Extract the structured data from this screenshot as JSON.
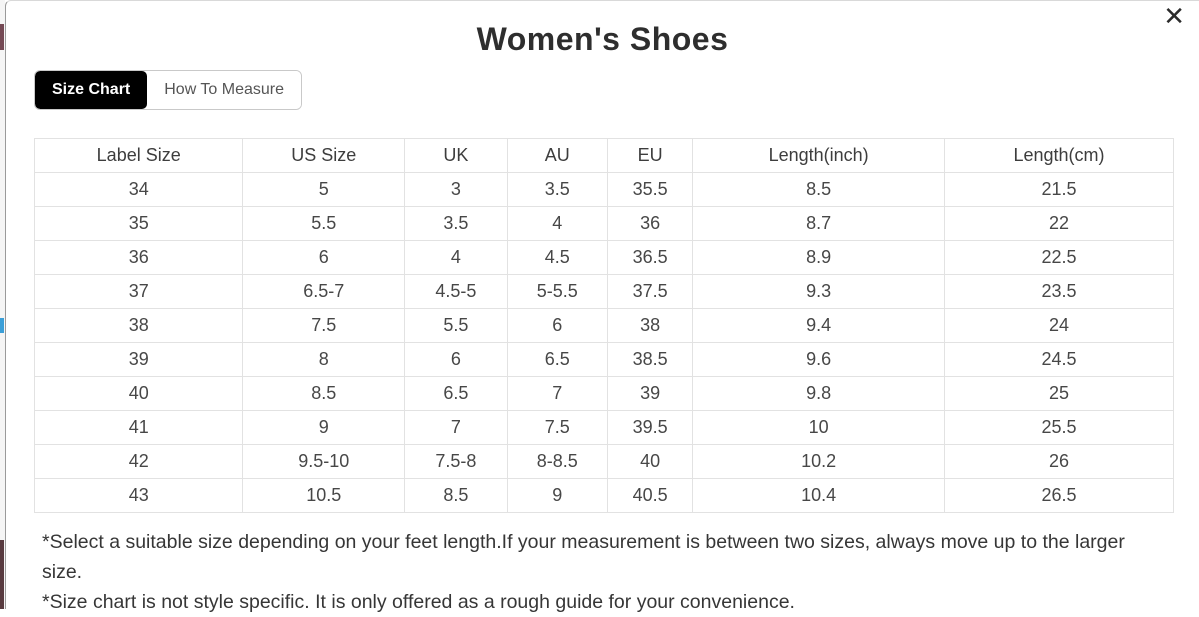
{
  "modal": {
    "title": "Women's Shoes",
    "close_label": "✕"
  },
  "tabs": [
    {
      "label": "Size Chart",
      "active": true
    },
    {
      "label": "How To Measure",
      "active": false
    }
  ],
  "table": {
    "headers": [
      "Label Size",
      "US Size",
      "UK",
      "AU",
      "EU",
      "Length(inch)",
      "Length(cm)"
    ],
    "rows": [
      [
        "34",
        "5",
        "3",
        "3.5",
        "35.5",
        "8.5",
        "21.5"
      ],
      [
        "35",
        "5.5",
        "3.5",
        "4",
        "36",
        "8.7",
        "22"
      ],
      [
        "36",
        "6",
        "4",
        "4.5",
        "36.5",
        "8.9",
        "22.5"
      ],
      [
        "37",
        "6.5-7",
        "4.5-5",
        "5-5.5",
        "37.5",
        "9.3",
        "23.5"
      ],
      [
        "38",
        "7.5",
        "5.5",
        "6",
        "38",
        "9.4",
        "24"
      ],
      [
        "39",
        "8",
        "6",
        "6.5",
        "38.5",
        "9.6",
        "24.5"
      ],
      [
        "40",
        "8.5",
        "6.5",
        "7",
        "39",
        "9.8",
        "25"
      ],
      [
        "41",
        "9",
        "7",
        "7.5",
        "39.5",
        "10",
        "25.5"
      ],
      [
        "42",
        "9.5-10",
        "7.5-8",
        "8-8.5",
        "40",
        "10.2",
        "26"
      ],
      [
        "43",
        "10.5",
        "8.5",
        "9",
        "40.5",
        "10.4",
        "26.5"
      ]
    ]
  },
  "notes": [
    "*Select a suitable size depending on your feet length.If your measurement is between two sizes, always move up to the larger size.",
    "*Size chart is not style specific. It is only offered as a rough guide for your convenience."
  ],
  "colors": {
    "active_tab_bg": "#000000",
    "active_tab_text": "#ffffff",
    "inactive_tab_text": "#555555",
    "table_border": "#e2e2e2",
    "body_text": "#474747",
    "title_text": "#2e2e2e"
  }
}
